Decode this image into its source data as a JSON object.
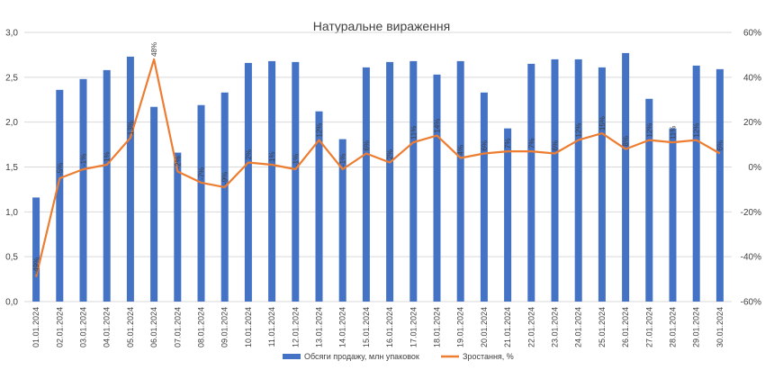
{
  "chart_data": {
    "type": "bar+line",
    "title": "Натуральне вираження",
    "categories": [
      "01.01.2024",
      "02.01.2024",
      "03.01.2024",
      "04.01.2024",
      "05.01.2024",
      "06.01.2024",
      "07.01.2024",
      "08.01.2024",
      "09.01.2024",
      "10.01.2024",
      "11.01.2024",
      "12.01.2024",
      "13.01.2024",
      "14.01.2024",
      "15.01.2024",
      "16.01.2024",
      "17.01.2024",
      "18.01.2024",
      "19.01.2024",
      "20.01.2024",
      "21.01.2024",
      "22.01.2024",
      "23.01.2024",
      "24.01.2024",
      "25.01.2024",
      "26.01.2024",
      "27.01.2024",
      "28.01.2024",
      "29.01.2024",
      "30.01.2024"
    ],
    "series": [
      {
        "name": "Обсяги продажу, млн упаковок",
        "type": "bar",
        "axis": "left",
        "color": "#4472c4",
        "values": [
          1.16,
          2.36,
          2.48,
          2.58,
          2.73,
          2.17,
          1.66,
          2.19,
          2.33,
          2.66,
          2.68,
          2.67,
          2.12,
          1.81,
          2.61,
          2.67,
          2.68,
          2.53,
          2.68,
          2.33,
          1.93,
          2.65,
          2.7,
          2.7,
          2.61,
          2.77,
          2.26,
          1.93,
          2.63,
          2.59
        ]
      },
      {
        "name": "Зростання, %",
        "type": "line",
        "axis": "right",
        "color": "#ed7d31",
        "values": [
          -49,
          -5,
          -1,
          1,
          13,
          48,
          -2,
          -7,
          -9,
          2,
          1,
          -1,
          12,
          -1,
          6,
          2,
          11,
          14,
          4,
          6,
          7,
          7,
          6,
          12,
          15,
          8,
          12,
          11,
          12,
          6
        ],
        "labels": [
          "-49%",
          "-5%",
          "-1%",
          "1%",
          "13%",
          "48%",
          "-2%",
          "-7%",
          "-9%",
          "2%",
          "1%",
          "-1%",
          "12%",
          "-1%",
          "6%",
          "2%",
          "11%",
          "14%",
          "4%",
          "6%",
          "7%",
          "7%",
          "6%",
          "12%",
          "15%",
          "8%",
          "12%",
          "11%",
          "12%",
          "6%"
        ]
      }
    ],
    "y_left": {
      "min": 0,
      "max": 3,
      "step": 0.5,
      "tick_labels": [
        "0,0",
        "0,5",
        "1,0",
        "1,5",
        "2,0",
        "2,5",
        "3,0"
      ]
    },
    "y_right": {
      "min": -60,
      "max": 60,
      "step": 20,
      "tick_labels": [
        "-60%",
        "-40%",
        "-20%",
        "0%",
        "20%",
        "40%",
        "60%"
      ]
    },
    "grid": true,
    "legend_position": "bottom"
  }
}
